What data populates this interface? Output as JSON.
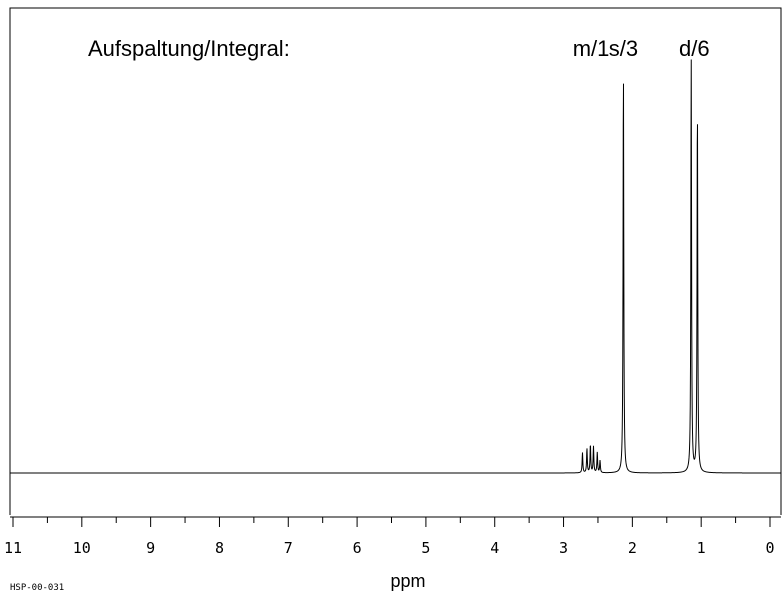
{
  "chart_data": {
    "type": "line",
    "header_label": "Aufspaltung/Integral:",
    "xlabel": "ppm",
    "xlim": [
      11,
      0
    ],
    "x_axis_reversed": true,
    "x_ticks_major": [
      "11",
      "10",
      "9",
      "8",
      "7",
      "6",
      "5",
      "4",
      "3",
      "2",
      "1",
      "0"
    ],
    "spectrum_id": "HSP-00-031",
    "peak_annotations": [
      {
        "label": "m/1",
        "ppm": 2.6
      },
      {
        "label": "s/3",
        "ppm": 2.13
      },
      {
        "label": "d/6",
        "ppm": 1.1
      }
    ],
    "series": [
      {
        "peaks": [
          {
            "ppm": 2.13,
            "relative_height": 1.0
          },
          {
            "ppm": 1.145,
            "relative_height": 1.03
          },
          {
            "ppm": 1.055,
            "relative_height": 0.91
          },
          {
            "ppm": 2.725,
            "relative_height": 0.05
          },
          {
            "ppm": 2.66,
            "relative_height": 0.06
          },
          {
            "ppm": 2.61,
            "relative_height": 0.07
          },
          {
            "ppm": 2.565,
            "relative_height": 0.065
          },
          {
            "ppm": 2.51,
            "relative_height": 0.05
          },
          {
            "ppm": 2.47,
            "relative_height": 0.03
          }
        ]
      }
    ],
    "grid": false,
    "legend": false
  }
}
